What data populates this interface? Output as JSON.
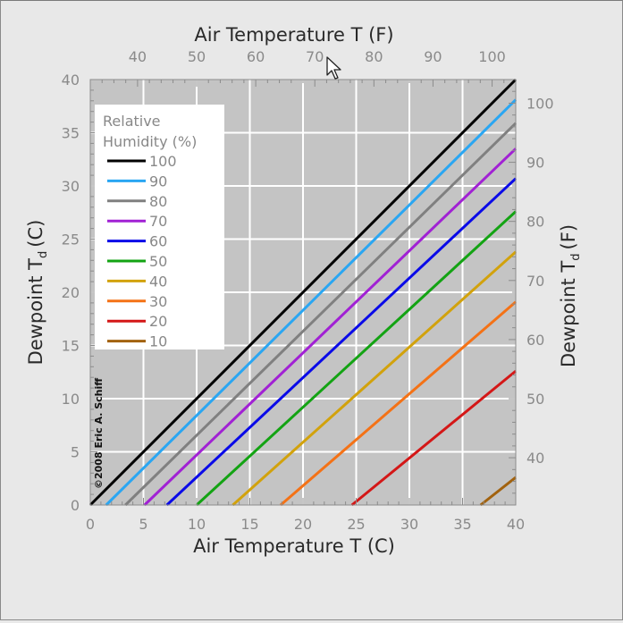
{
  "chart_data": {
    "type": "line",
    "x_label_bottom": "Air Temperature T (C)",
    "x_label_top": "Air Temperature T (F)",
    "y_label_left": "Dewpoint T",
    "y_label_left_sub": "d",
    "y_label_left_unit": "(C)",
    "y_label_right": "Dewpoint T",
    "y_label_right_sub": "d",
    "y_label_right_unit": "(F)",
    "xlim": [
      0,
      40
    ],
    "ylim": [
      0,
      40
    ],
    "x_ticks": [
      0,
      5,
      10,
      15,
      20,
      25,
      30,
      35,
      40
    ],
    "y_ticks": [
      0,
      5,
      10,
      15,
      20,
      25,
      30,
      35,
      40
    ],
    "x_ticks_top_F": [
      40,
      50,
      60,
      70,
      80,
      90,
      100
    ],
    "y_ticks_right_F": [
      40,
      50,
      60,
      70,
      80,
      90,
      100
    ],
    "grid": true,
    "legend_title_1": "Relative",
    "legend_title_2": "Humidity (%)",
    "legend_placement": "top-left",
    "copyright": "©2008 Eric A. Schiff",
    "series": [
      {
        "name": "100",
        "color": "#000000",
        "x": [
          0,
          40
        ],
        "y": [
          0,
          40
        ]
      },
      {
        "name": "90",
        "color": "#2aa6f2",
        "x": [
          1.5,
          40
        ],
        "y": [
          0,
          38.1
        ]
      },
      {
        "name": "80",
        "color": "#808080",
        "x": [
          3.3,
          40
        ],
        "y": [
          0,
          35.9
        ]
      },
      {
        "name": "70",
        "color": "#a121d4",
        "x": [
          5.1,
          40
        ],
        "y": [
          0,
          33.5
        ]
      },
      {
        "name": "60",
        "color": "#0a0ae8",
        "x": [
          7.2,
          40
        ],
        "y": [
          0,
          30.7
        ]
      },
      {
        "name": "50",
        "color": "#13a313",
        "x": [
          10.0,
          40
        ],
        "y": [
          0,
          27.6
        ]
      },
      {
        "name": "40",
        "color": "#d2a20c",
        "x": [
          13.4,
          40
        ],
        "y": [
          0,
          23.8
        ]
      },
      {
        "name": "30",
        "color": "#f47216",
        "x": [
          17.9,
          40
        ],
        "y": [
          0,
          19.1
        ]
      },
      {
        "name": "20",
        "color": "#d41717",
        "x": [
          24.6,
          40
        ],
        "y": [
          0,
          12.6
        ]
      },
      {
        "name": "10",
        "color": "#a2620e",
        "x": [
          36.7,
          40
        ],
        "y": [
          0,
          2.6
        ]
      }
    ]
  }
}
